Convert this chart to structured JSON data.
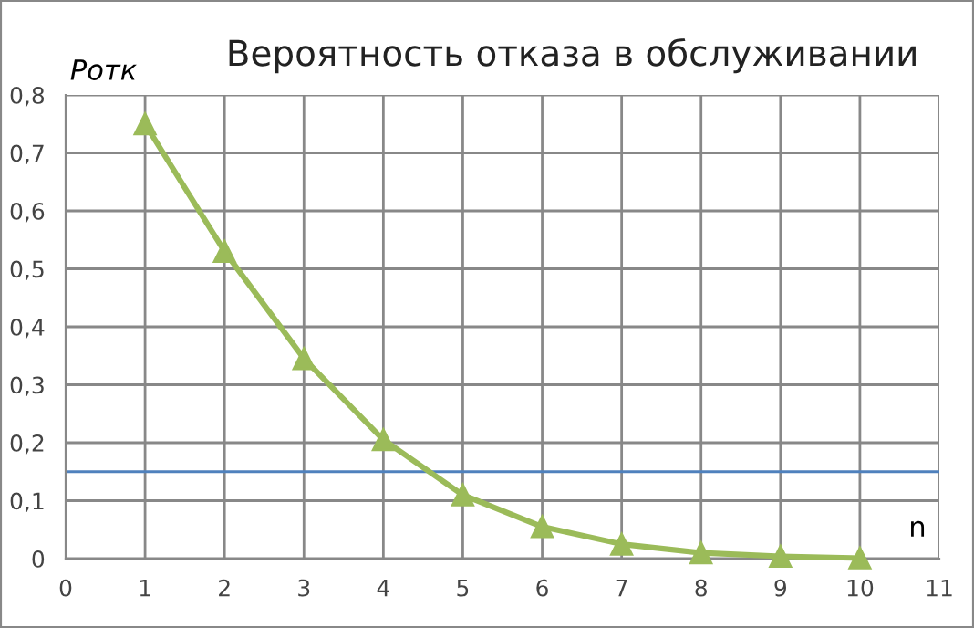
{
  "chart_data": {
    "type": "line",
    "title": "Вероятность отказа в обслуживании",
    "xlabel": "n",
    "ylabel": "Pотк",
    "x": [
      1,
      2,
      3,
      4,
      5,
      6,
      7,
      8,
      9,
      10
    ],
    "series": [
      {
        "color": "#9bbb59",
        "values": [
          0.75,
          0.53,
          0.345,
          0.205,
          0.11,
          0.055,
          0.025,
          0.01,
          0.004,
          0.001
        ]
      }
    ],
    "marker": "triangle",
    "grid": true,
    "xlim": [
      0,
      11
    ],
    "xticks": [
      0,
      1,
      2,
      3,
      4,
      5,
      6,
      7,
      8,
      9,
      10,
      11
    ],
    "ylim": [
      0,
      0.8
    ],
    "yticks": [
      0,
      {
        "value": 0.1,
        "label": "0,1"
      },
      {
        "value": 0.2,
        "label": "0,2"
      },
      {
        "value": 0.3,
        "label": "0,3"
      },
      {
        "value": 0.4,
        "label": "0,4"
      },
      {
        "value": 0.5,
        "label": "0,5"
      },
      {
        "value": 0.6,
        "label": "0,6"
      },
      {
        "value": 0.7,
        "label": "0,7"
      },
      {
        "value": 0.8,
        "label": "0,8"
      }
    ],
    "ref_lines": [
      {
        "axis": "y",
        "value": 0.15,
        "color": "#4f81bd"
      }
    ]
  }
}
